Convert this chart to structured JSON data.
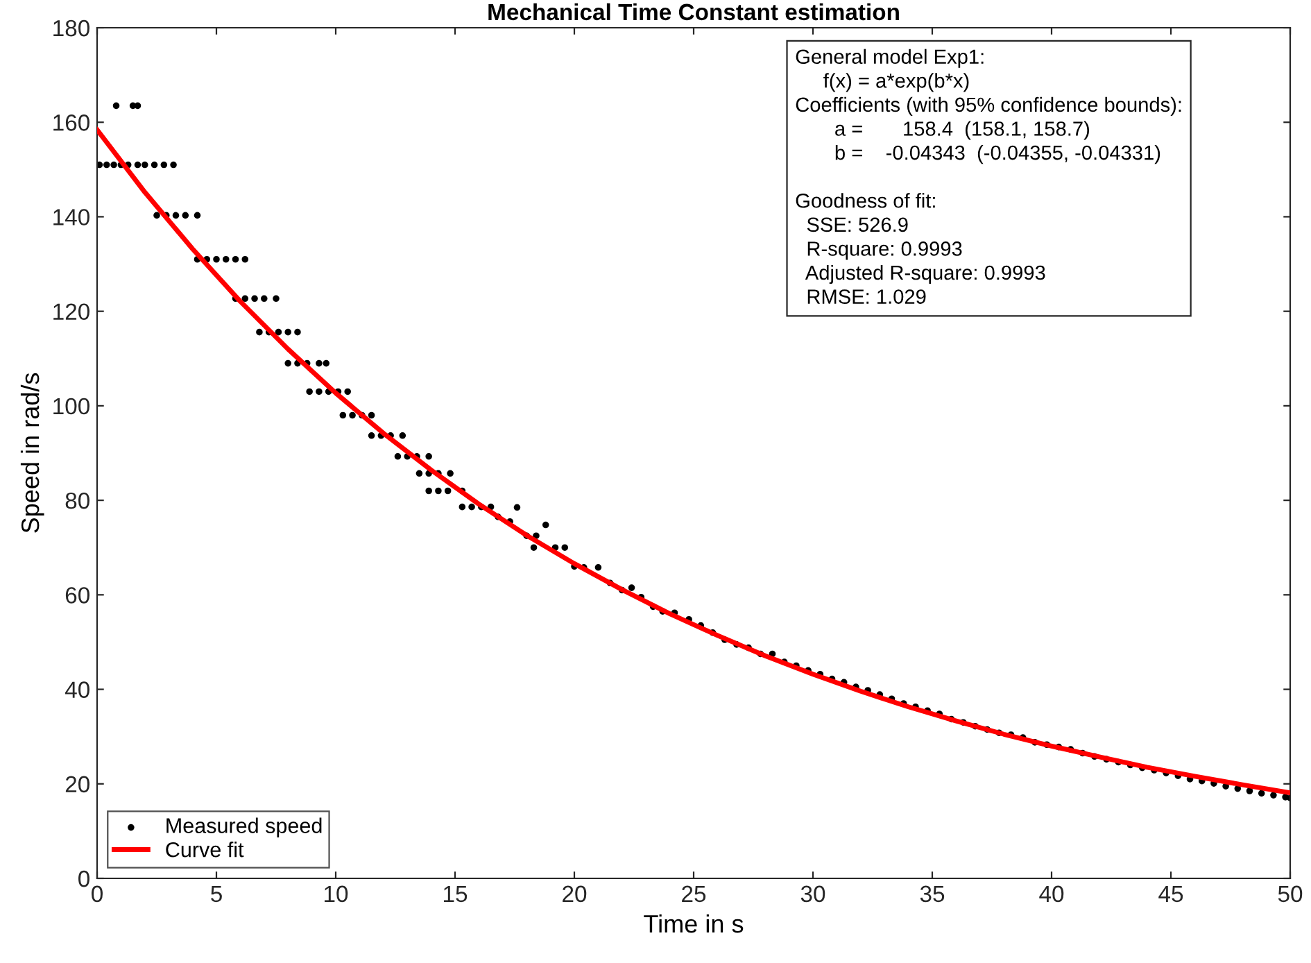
{
  "chart_data": {
    "type": "scatter",
    "title": "Mechanical Time Constant estimation",
    "xlabel": "Time in s",
    "ylabel": "Speed in rad/s",
    "xlim": [
      0,
      50
    ],
    "ylim": [
      0,
      180
    ],
    "xticks": [
      0,
      5,
      10,
      15,
      20,
      25,
      30,
      35,
      40,
      45,
      50
    ],
    "yticks": [
      0,
      20,
      40,
      60,
      80,
      100,
      120,
      140,
      160,
      180
    ],
    "grid": false,
    "legend": "bottom left",
    "annotations": [
      "General model Exp1:\n     f(x) = a*exp(b*x)\nCoefficients (with 95% confidence bounds):\n       a =       158.4  (158.1, 158.7)\n       b =    -0.04343  (-0.04355, -0.04331)\n\nGoodness of fit:\n  SSE: 526.9\n  R-square: 0.9993\n  Adjusted R-square: 0.9993\n  RMSE: 1.029"
    ],
    "series": [
      {
        "name": "Measured speed",
        "marker": "circle",
        "color": "#000000",
        "x": [
          0.1,
          0.4,
          0.7,
          1.0,
          1.3,
          1.7,
          2.0,
          0.8,
          1.5,
          1.7,
          2.4,
          2.8,
          3.2,
          2.5,
          2.9,
          3.3,
          3.7,
          4.2,
          4.2,
          4.6,
          5.0,
          5.4,
          5.8,
          6.2,
          5.8,
          6.2,
          6.6,
          7.0,
          7.5,
          6.8,
          7.2,
          7.6,
          8.0,
          8.4,
          8.0,
          8.4,
          8.8,
          9.3,
          9.6,
          8.9,
          9.3,
          9.7,
          10.1,
          10.5,
          10.3,
          10.7,
          11.1,
          11.5,
          11.5,
          11.9,
          12.3,
          12.8,
          12.6,
          13.0,
          13.4,
          13.9,
          13.5,
          13.9,
          14.3,
          14.8,
          13.9,
          14.3,
          14.7,
          15.3,
          15.3,
          15.7,
          16.1,
          16.5,
          16.8,
          17.3,
          17.6,
          18.0,
          18.4,
          18.8,
          18.3,
          19.2,
          19.6,
          20.0,
          20.4,
          21.0,
          21.5,
          22.0,
          22.4,
          22.8,
          23.3,
          23.7,
          24.2,
          24.8,
          25.3,
          25.8,
          26.3,
          26.8,
          27.3,
          27.8,
          28.3,
          28.8,
          29.3,
          29.8,
          30.3,
          30.8,
          31.3,
          31.8,
          32.3,
          32.8,
          33.3,
          33.8,
          34.3,
          34.8,
          35.3,
          35.8,
          36.3,
          36.8,
          37.3,
          37.8,
          38.3,
          38.8,
          39.3,
          39.8,
          40.3,
          40.8,
          41.3,
          41.8,
          42.3,
          42.8,
          43.3,
          43.8,
          44.3,
          44.8,
          45.3,
          45.8,
          46.3,
          46.8,
          47.3,
          47.8,
          48.3,
          48.8,
          49.3,
          49.8,
          50.0
        ],
        "values": [
          151,
          151,
          151,
          151,
          151,
          151,
          151,
          163.5,
          163.5,
          163.5,
          151,
          151,
          151,
          140.3,
          140.3,
          140.3,
          140.3,
          140.3,
          131,
          131,
          131,
          131,
          131,
          131,
          122.7,
          122.7,
          122.7,
          122.7,
          122.7,
          115.6,
          115.6,
          115.6,
          115.6,
          115.6,
          109,
          109,
          109,
          109,
          109,
          103,
          103,
          103,
          103,
          103,
          98,
          98,
          98,
          98,
          93.7,
          93.7,
          93.7,
          93.7,
          89.3,
          89.3,
          89.3,
          89.3,
          85.7,
          85.7,
          85.7,
          85.7,
          82,
          82,
          82,
          82,
          78.6,
          78.6,
          78.6,
          78.6,
          76.5,
          75.5,
          78.5,
          72.5,
          72.5,
          74.8,
          70,
          70,
          70,
          66,
          65.8,
          65.8,
          62.5,
          61,
          61.5,
          59.5,
          57.5,
          56.5,
          56.2,
          54.8,
          53.5,
          52,
          50.5,
          49.5,
          48.8,
          47.5,
          47.5,
          45.8,
          45,
          44,
          43.2,
          42.2,
          41.5,
          40.5,
          39.8,
          38.9,
          38,
          37,
          36.3,
          35.5,
          34.8,
          33.7,
          33,
          32.2,
          31.5,
          30.8,
          30.4,
          29.8,
          28.8,
          28.3,
          27.8,
          27.3,
          26.5,
          25.8,
          25.2,
          24.6,
          24,
          23.4,
          22.9,
          22.3,
          21.7,
          21,
          20.6,
          20.1,
          19.5,
          19,
          18.5,
          18,
          17.6,
          17.2,
          17
        ]
      },
      {
        "name": "Curve fit",
        "type": "line",
        "marker": "none",
        "line_style": "solid",
        "color": "#ff0000",
        "x": [
          0,
          2,
          4,
          6,
          8,
          10,
          12,
          14,
          16,
          18,
          20,
          22,
          24,
          26,
          28,
          30,
          32,
          34,
          36,
          38,
          40,
          42,
          44,
          46,
          48,
          50
        ],
        "values": [
          158.4,
          145.2,
          133.2,
          122.1,
          112.0,
          102.7,
          94.2,
          86.4,
          79.2,
          72.6,
          66.6,
          61.1,
          56.0,
          51.4,
          47.1,
          43.2,
          39.6,
          36.3,
          33.3,
          30.5,
          28.0,
          25.7,
          23.5,
          21.6,
          19.8,
          18.1
        ]
      }
    ]
  }
}
